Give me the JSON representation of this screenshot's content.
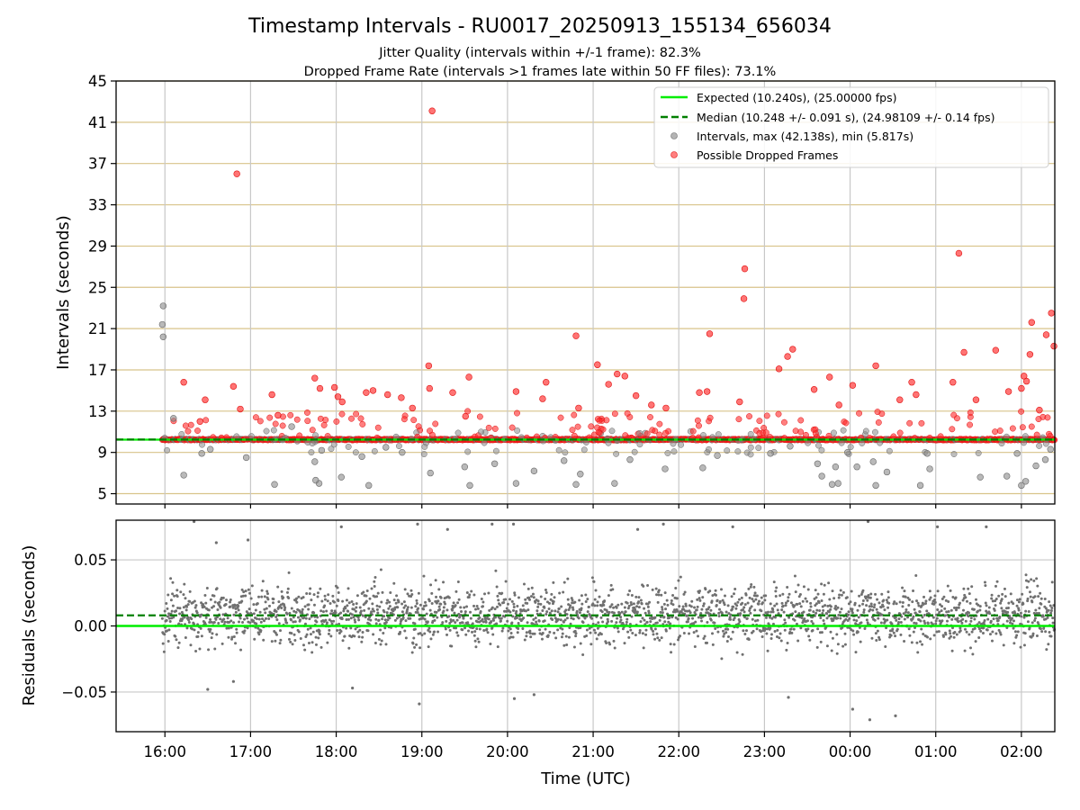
{
  "chart_data": [
    {
      "type": "scatter",
      "title": "Timestamp Intervals - RU0017_20250913_155134_656034",
      "subtitle_lines": [
        "Jitter Quality (intervals within +/-1 frame): 82.3%",
        "Dropped Frame Rate (intervals >1 frames late within 50 FF files): 73.1%"
      ],
      "xlabel": "",
      "ylabel": "Intervals (seconds)",
      "xlim_hours": [
        15.43,
        26.39
      ],
      "ylim": [
        4,
        45
      ],
      "yticks": [
        5,
        9,
        13,
        17,
        21,
        25,
        29,
        33,
        37,
        41,
        45
      ],
      "ytick_labels": [
        "5",
        "9",
        "13",
        "17",
        "21",
        "25",
        "29",
        "33",
        "37",
        "41",
        "45"
      ],
      "grid": "horizontal lines colored, vertical lines gray",
      "expected_value": 10.24,
      "median_value": 10.248,
      "legend_position": "top-right",
      "legend": [
        {
          "label": "Expected (10.240s), (25.00000 fps)",
          "style": "line",
          "color": "#00ee00"
        },
        {
          "label": "Median (10.248 +/- 0.091 s), (24.98109 +/- 0.14 fps)",
          "style": "dashed",
          "color": "#008000"
        },
        {
          "label": "Intervals, max (42.138s), min (5.817s)",
          "style": "marker",
          "color": "#808080"
        },
        {
          "label": "Possible Dropped Frames",
          "style": "marker",
          "color": "#ff2a2a"
        }
      ],
      "series": [
        {
          "name": "Intervals (notable)",
          "color": "#808080",
          "points": [
            [
              15.98,
              23.2
            ],
            [
              15.97,
              21.4
            ],
            [
              15.98,
              20.2
            ],
            [
              16.1,
              12.3
            ],
            [
              16.22,
              6.8
            ],
            [
              16.43,
              8.9
            ],
            [
              16.53,
              9.3
            ],
            [
              16.95,
              8.5
            ],
            [
              17.28,
              5.9
            ],
            [
              17.48,
              11.5
            ],
            [
              17.75,
              8.1
            ],
            [
              17.8,
              6.0
            ],
            [
              17.76,
              6.3
            ],
            [
              17.83,
              9.2
            ],
            [
              18.06,
              6.6
            ],
            [
              18.3,
              8.6
            ],
            [
              18.38,
              5.8
            ],
            [
              18.58,
              9.5
            ],
            [
              18.77,
              9.0
            ],
            [
              19.1,
              7.0
            ],
            [
              19.5,
              7.6
            ],
            [
              19.56,
              5.8
            ],
            [
              19.85,
              7.9
            ],
            [
              20.1,
              6.0
            ],
            [
              20.31,
              7.2
            ],
            [
              20.66,
              8.2
            ],
            [
              20.8,
              5.9
            ],
            [
              20.85,
              6.9
            ],
            [
              21.25,
              6.0
            ],
            [
              21.43,
              8.3
            ],
            [
              21.84,
              7.4
            ],
            [
              22.28,
              7.5
            ],
            [
              22.45,
              8.7
            ],
            [
              23.07,
              8.9
            ],
            [
              23.3,
              9.6
            ],
            [
              23.62,
              7.9
            ],
            [
              23.67,
              6.7
            ],
            [
              23.79,
              5.9
            ],
            [
              23.83,
              7.6
            ],
            [
              23.86,
              6.0
            ],
            [
              23.97,
              9.0
            ],
            [
              24.08,
              7.6
            ],
            [
              24.27,
              8.1
            ],
            [
              24.3,
              5.8
            ],
            [
              24.43,
              7.1
            ],
            [
              24.82,
              5.8
            ],
            [
              24.9,
              8.9
            ],
            [
              24.93,
              7.4
            ],
            [
              25.52,
              6.6
            ],
            [
              25.83,
              6.7
            ],
            [
              25.95,
              8.9
            ],
            [
              26.0,
              5.8
            ],
            [
              26.05,
              6.2
            ],
            [
              26.17,
              7.7
            ],
            [
              26.28,
              8.3
            ],
            [
              26.34,
              9.3
            ]
          ]
        },
        {
          "name": "Possible Dropped Frames (notable)",
          "color": "#ff2a2a",
          "points": [
            [
              16.22,
              15.8
            ],
            [
              16.47,
              14.1
            ],
            [
              16.41,
              12.0
            ],
            [
              16.8,
              15.4
            ],
            [
              16.84,
              36.0
            ],
            [
              16.88,
              13.2
            ],
            [
              17.25,
              14.6
            ],
            [
              17.32,
              12.6
            ],
            [
              17.75,
              16.2
            ],
            [
              17.81,
              15.2
            ],
            [
              17.98,
              15.3
            ],
            [
              18.02,
              14.4
            ],
            [
              18.07,
              13.9
            ],
            [
              18.35,
              14.8
            ],
            [
              18.43,
              15.0
            ],
            [
              18.6,
              14.6
            ],
            [
              18.76,
              14.3
            ],
            [
              18.89,
              13.3
            ],
            [
              19.08,
              17.4
            ],
            [
              19.09,
              15.2
            ],
            [
              19.12,
              42.1
            ],
            [
              19.36,
              14.8
            ],
            [
              19.55,
              16.3
            ],
            [
              19.51,
              12.5
            ],
            [
              20.1,
              14.9
            ],
            [
              20.41,
              14.2
            ],
            [
              20.45,
              15.8
            ],
            [
              20.8,
              20.3
            ],
            [
              20.83,
              13.3
            ],
            [
              21.05,
              17.5
            ],
            [
              21.18,
              15.6
            ],
            [
              21.28,
              16.6
            ],
            [
              21.37,
              16.4
            ],
            [
              21.5,
              14.5
            ],
            [
              21.68,
              13.6
            ],
            [
              21.85,
              13.3
            ],
            [
              22.24,
              14.8
            ],
            [
              22.33,
              14.9
            ],
            [
              22.36,
              20.5
            ],
            [
              22.71,
              13.9
            ],
            [
              22.76,
              23.9
            ],
            [
              22.77,
              26.8
            ],
            [
              23.17,
              17.1
            ],
            [
              23.27,
              18.3
            ],
            [
              23.33,
              19.0
            ],
            [
              23.58,
              15.1
            ],
            [
              23.76,
              16.3
            ],
            [
              23.87,
              13.6
            ],
            [
              24.03,
              15.5
            ],
            [
              24.3,
              17.4
            ],
            [
              24.58,
              14.1
            ],
            [
              24.72,
              15.8
            ],
            [
              24.77,
              14.6
            ],
            [
              25.2,
              15.8
            ],
            [
              25.27,
              28.3
            ],
            [
              25.33,
              18.7
            ],
            [
              25.47,
              14.1
            ],
            [
              25.7,
              18.9
            ],
            [
              25.85,
              14.9
            ],
            [
              26.0,
              15.2
            ],
            [
              26.03,
              16.4
            ],
            [
              26.06,
              15.9
            ],
            [
              26.1,
              18.5
            ],
            [
              26.12,
              21.6
            ],
            [
              26.21,
              13.1
            ],
            [
              26.29,
              20.4
            ],
            [
              26.35,
              22.5
            ],
            [
              26.38,
              19.3
            ]
          ]
        }
      ]
    },
    {
      "type": "scatter",
      "xlabel": "Time (UTC)",
      "ylabel": "Residuals (seconds)",
      "xlim_hours": [
        15.43,
        26.39
      ],
      "ylim": [
        -0.08,
        0.08
      ],
      "yticks": [
        -0.05,
        0.0,
        0.05
      ],
      "ytick_labels": [
        "−0.05",
        "0.00",
        "0.05"
      ],
      "xticks_hours": [
        16,
        17,
        18,
        19,
        20,
        21,
        22,
        23,
        24,
        25,
        26
      ],
      "xtick_labels": [
        "16:00",
        "17:00",
        "18:00",
        "19:00",
        "20:00",
        "21:00",
        "22:00",
        "23:00",
        "00:00",
        "01:00",
        "02:00"
      ],
      "expected_residual": 0.0,
      "median_residual": 0.008,
      "data_start_hour": 15.97,
      "residual_typical_spread": 0.025,
      "series": [
        {
          "name": "Residuals (notable outliers)",
          "color": "#707070",
          "points": [
            [
              16.34,
              0.079
            ],
            [
              16.6,
              0.063
            ],
            [
              16.97,
              0.065
            ],
            [
              16.5,
              -0.048
            ],
            [
              16.8,
              -0.042
            ],
            [
              18.06,
              0.075
            ],
            [
              18.19,
              -0.047
            ],
            [
              18.95,
              0.077
            ],
            [
              18.97,
              -0.059
            ],
            [
              19.3,
              0.073
            ],
            [
              19.82,
              0.077
            ],
            [
              20.07,
              0.077
            ],
            [
              20.08,
              -0.055
            ],
            [
              20.31,
              -0.052
            ],
            [
              21.52,
              0.073
            ],
            [
              21.82,
              0.077
            ],
            [
              22.63,
              0.075
            ],
            [
              23.28,
              -0.054
            ],
            [
              24.03,
              -0.063
            ],
            [
              24.23,
              -0.071
            ],
            [
              24.21,
              0.079
            ],
            [
              24.53,
              -0.068
            ],
            [
              25.02,
              0.075
            ],
            [
              25.59,
              0.075
            ]
          ]
        }
      ]
    }
  ]
}
